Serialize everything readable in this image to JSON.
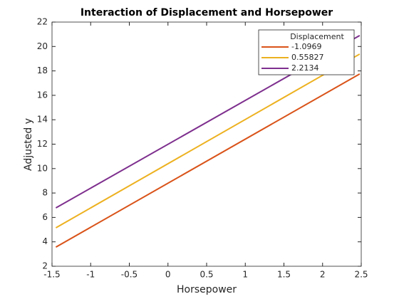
{
  "chart_data": {
    "type": "line",
    "title": "Interaction of Displacement and Horsepower",
    "x_label": "Horsepower",
    "y_label": "Adjusted y",
    "x": [
      -1.45,
      2.48
    ],
    "series": [
      {
        "name": "-1.0969",
        "color": "#D95319",
        "values": [
          3.57,
          17.75
        ]
      },
      {
        "name": "0.55827",
        "color": "#EDB120",
        "values": [
          5.15,
          19.38
        ]
      },
      {
        "name": "2.2134",
        "color": "#7E2F8E",
        "values": [
          6.78,
          20.9
        ]
      }
    ],
    "legend_title": "Displacement",
    "legend_position": "top-right",
    "xlim": [
      -1.5,
      2.5
    ],
    "xticks": [
      -1.5,
      -1,
      -0.5,
      0,
      0.5,
      1,
      1.5,
      2,
      2.5
    ],
    "ylim": [
      2,
      22
    ],
    "yticks": [
      2,
      4,
      6,
      8,
      10,
      12,
      14,
      16,
      18,
      20,
      22
    ],
    "grid": false
  }
}
